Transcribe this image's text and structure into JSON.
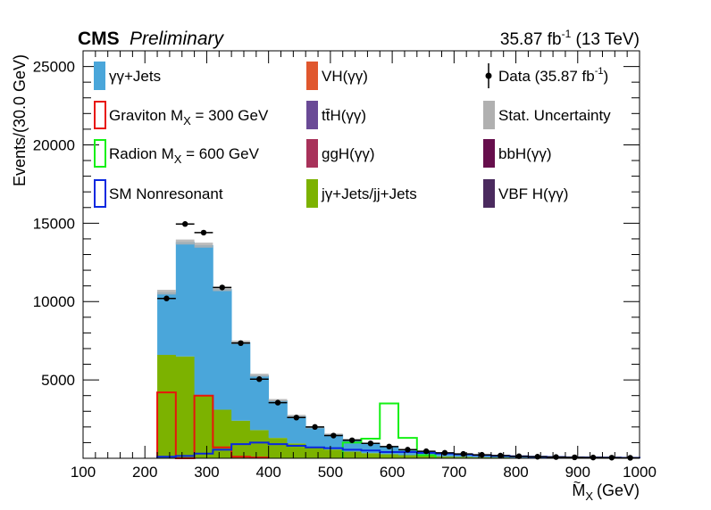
{
  "header": {
    "experiment": "CMS",
    "status": "Preliminary",
    "lumi_text": "35.87 fb",
    "lumi_sup": "-1",
    "energy_text": " (13 TeV)"
  },
  "chart_data": {
    "type": "bar",
    "stacked": true,
    "xlabel_main": "M",
    "xlabel_sub": "X",
    "xlabel_unit": "(GeV)",
    "ylabel": "Events/(30.0 GeV)",
    "xlim": [
      100,
      1000
    ],
    "ylim": [
      0,
      26000
    ],
    "grid": false,
    "x_ticks": [
      "100",
      "200",
      "300",
      "400",
      "500",
      "600",
      "700",
      "800",
      "900",
      "1000"
    ],
    "y_ticks": [
      "5000",
      "10000",
      "15000",
      "20000",
      "25000"
    ],
    "bin_edges": [
      220,
      250,
      280,
      310,
      340,
      370,
      400,
      430,
      460,
      490,
      520,
      550,
      580,
      610,
      640,
      670,
      700,
      730,
      760,
      790,
      820,
      850,
      880,
      910,
      940,
      970,
      1000
    ],
    "stack": [
      {
        "name": "jγ+Jets/jj+Jets",
        "color": "#7cb200",
        "values": [
          6600,
          6500,
          4000,
          3100,
          2400,
          1800,
          1300,
          950,
          720,
          560,
          430,
          330,
          260,
          200,
          150,
          115,
          90,
          70,
          55,
          40,
          30,
          25,
          20,
          15,
          12,
          10
        ]
      },
      {
        "name": "γγ+Jets",
        "color": "#4aa6da",
        "values": [
          4000,
          7300,
          9600,
          7700,
          5000,
          3500,
          2400,
          1750,
          1250,
          970,
          780,
          620,
          500,
          380,
          290,
          215,
          160,
          120,
          95,
          75,
          60,
          45,
          35,
          25,
          20,
          15
        ]
      }
    ],
    "stat_uncertainty": {
      "name": "Stat. Uncertainty",
      "color": "#b0b0b0",
      "values": [
        150,
        160,
        160,
        130,
        110,
        95,
        80,
        70,
        60,
        50,
        45,
        40,
        35,
        30,
        25,
        22,
        20,
        18,
        15,
        12,
        10,
        9,
        8,
        7,
        6,
        5
      ]
    },
    "data": {
      "name": "Data (35.87 fb",
      "name_sup": "-1",
      "name_end": ")",
      "x": [
        235,
        265,
        295,
        325,
        355,
        385,
        415,
        445,
        475,
        505,
        535,
        565,
        595,
        625,
        655,
        685,
        715,
        745,
        775,
        805,
        835,
        865,
        895,
        925,
        955,
        985
      ],
      "y": [
        10200,
        14950,
        14400,
        10900,
        7350,
        5050,
        3550,
        2600,
        2000,
        1450,
        1150,
        950,
        750,
        550,
        450,
        350,
        280,
        220,
        170,
        130,
        100,
        80,
        60,
        50,
        40,
        30
      ],
      "y_err": [
        100,
        122,
        120,
        104,
        86,
        71,
        60,
        51,
        45,
        38,
        34,
        31,
        27,
        23,
        21,
        19,
        17,
        15,
        13,
        11,
        10,
        9,
        8,
        7,
        6,
        5
      ]
    },
    "signals": [
      {
        "name": "Graviton M",
        "name_sub": "X",
        "name_end": " = 300 GeV",
        "color": "#e8140c",
        "edges": [
          220,
          250,
          280,
          310,
          340,
          370,
          400
        ],
        "values": [
          4200,
          0,
          4000,
          700,
          100,
          50
        ]
      },
      {
        "name": "Radion M",
        "name_sub": "X",
        "name_end": " = 600 GeV",
        "color": "#14f014",
        "edges": [
          520,
          550,
          580,
          610,
          640,
          670
        ],
        "values": [
          1000,
          1250,
          3500,
          1300,
          200
        ]
      },
      {
        "name": "SM Nonresonant",
        "color": "#0a28e0",
        "edges": [
          220,
          250,
          280,
          310,
          340,
          370,
          400,
          430,
          460,
          490,
          520,
          550,
          580,
          610,
          640,
          670,
          700,
          730,
          760,
          790,
          820,
          850,
          880,
          910,
          940,
          970,
          1000
        ],
        "values": [
          100,
          150,
          300,
          550,
          900,
          1000,
          900,
          800,
          700,
          650,
          550,
          500,
          400,
          400,
          350,
          300,
          250,
          200,
          160,
          130,
          100,
          80,
          60,
          50,
          40,
          30
        ]
      }
    ],
    "legend": {
      "placement": "top",
      "entries": [
        {
          "id": "gg-jets",
          "text": "γγ+Jets",
          "kind": "fill",
          "color": "#4aa6da"
        },
        {
          "id": "vh",
          "text": "VH(γγ)",
          "kind": "fill",
          "color": "#e0572e"
        },
        {
          "id": "data",
          "text": "Data (35.87 fb",
          "sup": "-1",
          "end": ")",
          "kind": "marker",
          "color": "#000000"
        },
        {
          "id": "graviton",
          "text": "Graviton M",
          "sub": "X",
          "end": " = 300 GeV",
          "kind": "line",
          "color": "#e8140c"
        },
        {
          "id": "tth",
          "text": "tt̄H(γγ)",
          "kind": "fill",
          "color": "#6a4a96"
        },
        {
          "id": "stat-unc",
          "text": "Stat. Uncertainty",
          "kind": "fill",
          "color": "#b0b0b0"
        },
        {
          "id": "radion",
          "text": "Radion M",
          "sub": "X",
          "end": " = 600 GeV",
          "kind": "line",
          "color": "#14f014"
        },
        {
          "id": "ggh",
          "text": "ggH(γγ)",
          "kind": "fill",
          "color": "#a8325a"
        },
        {
          "id": "bbh",
          "text": "bbH(γγ)",
          "kind": "fill",
          "color": "#660e4c"
        },
        {
          "id": "sm-nonres",
          "text": "SM Nonresonant",
          "kind": "line",
          "color": "#0a28e0"
        },
        {
          "id": "jg-jets",
          "text": "jγ+Jets/jj+Jets",
          "kind": "fill",
          "color": "#7cb200"
        },
        {
          "id": "vbf",
          "text": "VBF H(γγ)",
          "kind": "fill",
          "color": "#4a2a5e"
        }
      ]
    }
  }
}
